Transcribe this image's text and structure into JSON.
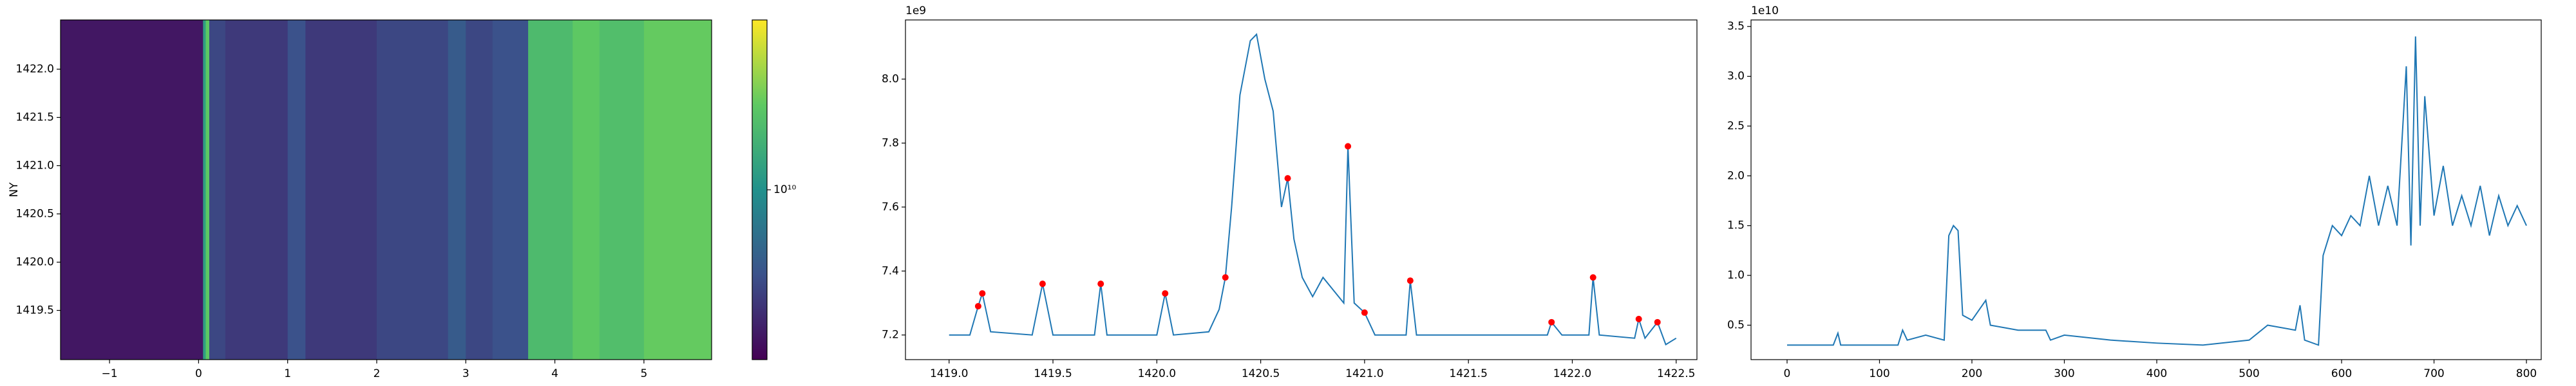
{
  "chart_data": [
    {
      "type": "heatmap",
      "ylabel": "NY",
      "xlim": [
        -1.55,
        5.76
      ],
      "ylim": [
        1418.99,
        1422.51
      ],
      "xticks": [
        {
          "value": -1,
          "label": "−1"
        },
        0,
        1,
        2,
        3,
        4,
        5
      ],
      "yticks": [
        1419.5,
        {
          "value": 1420,
          "label": "1420.0"
        },
        1420.5,
        {
          "value": 1421,
          "label": "1421.0"
        },
        1421.5,
        {
          "value": 1422,
          "label": "1422.0"
        }
      ],
      "x_edges": [
        -1.55,
        0.05,
        0.08,
        0.12,
        0.3,
        1.0,
        1.2,
        2.0,
        2.8,
        3.0,
        3.3,
        3.7,
        4.2,
        4.5,
        5.0,
        5.76
      ],
      "values": [
        2500000000,
        12000000000,
        22000000000,
        4000000000,
        3500000000,
        4500000000,
        3500000000,
        4000000000,
        5000000000,
        4000000000,
        4500000000,
        18000000000,
        22000000000,
        19000000000,
        23000000000
      ],
      "log_color": true,
      "clim": [
        2000000000,
        50000000000
      ],
      "cticks": [
        {
          "value": 10000000000,
          "label": "10¹⁰"
        }
      ]
    },
    {
      "type": "line",
      "offset_text": "1e9",
      "xlim": [
        1418.79,
        1422.6
      ],
      "ylim": [
        7.123,
        8.185
      ],
      "xticks": [
        {
          "value": 1419,
          "label": "1419.0"
        },
        1419.5,
        {
          "value": 1420,
          "label": "1420.0"
        },
        1420.5,
        {
          "value": 1421,
          "label": "1421.0"
        },
        1421.5,
        {
          "value": 1422,
          "label": "1422.0"
        },
        1422.5
      ],
      "yticks": [
        7.2,
        7.4,
        7.6,
        7.8,
        {
          "value": 8,
          "label": "8.0"
        }
      ],
      "series": [
        {
          "kind": "line",
          "color": "#1f77b4",
          "x": [
            1419.0,
            1419.1,
            1419.14,
            1419.16,
            1419.2,
            1419.4,
            1419.45,
            1419.5,
            1419.7,
            1419.73,
            1419.76,
            1420.0,
            1420.04,
            1420.08,
            1420.25,
            1420.3,
            1420.33,
            1420.36,
            1420.4,
            1420.45,
            1420.48,
            1420.52,
            1420.56,
            1420.6,
            1420.63,
            1420.66,
            1420.7,
            1420.75,
            1420.8,
            1420.85,
            1420.9,
            1420.92,
            1420.95,
            1421.0,
            1421.05,
            1421.2,
            1421.22,
            1421.25,
            1421.5,
            1421.88,
            1421.9,
            1421.95,
            1422.08,
            1422.1,
            1422.13,
            1422.3,
            1422.32,
            1422.35,
            1422.41,
            1422.45,
            1422.5
          ],
          "y": [
            7.2,
            7.2,
            7.29,
            7.33,
            7.21,
            7.2,
            7.36,
            7.2,
            7.2,
            7.36,
            7.2,
            7.2,
            7.33,
            7.2,
            7.21,
            7.28,
            7.38,
            7.6,
            7.95,
            8.12,
            8.14,
            8.0,
            7.9,
            7.6,
            7.69,
            7.5,
            7.38,
            7.32,
            7.38,
            7.34,
            7.3,
            7.79,
            7.3,
            7.27,
            7.2,
            7.2,
            7.37,
            7.2,
            7.2,
            7.2,
            7.24,
            7.2,
            7.2,
            7.38,
            7.2,
            7.19,
            7.25,
            7.19,
            7.24,
            7.17,
            7.19
          ]
        },
        {
          "kind": "points",
          "color": "#ff0000",
          "x": [
            1419.14,
            1419.16,
            1419.45,
            1419.73,
            1420.04,
            1420.33,
            1420.63,
            1420.92,
            1421.0,
            1421.22,
            1421.9,
            1422.1,
            1422.32,
            1422.41
          ],
          "y": [
            7.29,
            7.33,
            7.36,
            7.36,
            7.33,
            7.38,
            7.69,
            7.79,
            7.27,
            7.37,
            7.24,
            7.38,
            7.25,
            7.24
          ]
        }
      ]
    },
    {
      "type": "line",
      "offset_text": "1e10",
      "xlim": [
        -39,
        816
      ],
      "ylim": [
        0.154,
        3.566
      ],
      "xticks": [
        0,
        100,
        200,
        300,
        400,
        500,
        600,
        700,
        800
      ],
      "yticks": [
        0.5,
        {
          "value": 1,
          "label": "1.0"
        },
        1.5,
        {
          "value": 2,
          "label": "2.0"
        },
        2.5,
        {
          "value": 3,
          "label": "3.0"
        },
        3.5
      ],
      "series": [
        {
          "kind": "line",
          "color": "#1f77b4",
          "x": [
            0,
            50,
            55,
            58,
            120,
            125,
            130,
            150,
            170,
            175,
            180,
            185,
            190,
            200,
            215,
            220,
            250,
            280,
            285,
            300,
            350,
            400,
            450,
            500,
            520,
            550,
            555,
            560,
            575,
            580,
            590,
            600,
            610,
            620,
            630,
            640,
            650,
            660,
            670,
            675,
            680,
            685,
            690,
            700,
            710,
            720,
            730,
            740,
            750,
            760,
            770,
            780,
            790,
            800
          ],
          "y": [
            0.3,
            0.3,
            0.42,
            0.3,
            0.3,
            0.45,
            0.35,
            0.4,
            0.35,
            1.4,
            1.5,
            1.45,
            0.6,
            0.55,
            0.75,
            0.5,
            0.45,
            0.45,
            0.35,
            0.4,
            0.35,
            0.32,
            0.3,
            0.35,
            0.5,
            0.45,
            0.7,
            0.35,
            0.3,
            1.2,
            1.5,
            1.4,
            1.6,
            1.5,
            2.0,
            1.5,
            1.9,
            1.5,
            3.1,
            1.3,
            3.4,
            1.5,
            2.8,
            1.6,
            2.1,
            1.5,
            1.8,
            1.5,
            1.9,
            1.4,
            1.8,
            1.5,
            1.7,
            1.5
          ]
        }
      ]
    }
  ]
}
